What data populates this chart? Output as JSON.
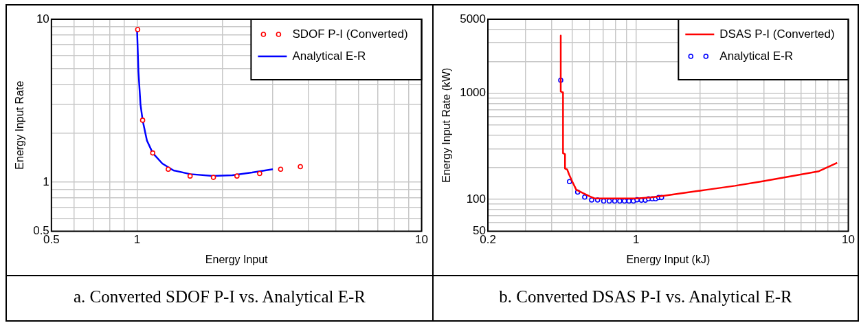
{
  "chart_data": [
    {
      "type": "line",
      "xlabel": "Energy Input",
      "ylabel": "Energy Input Rate",
      "annotations": [
        "a. Converted SDOF P-I vs. Analytical E-R"
      ],
      "log": "xy",
      "xlim": [
        0.5,
        10
      ],
      "ylim": [
        0.5,
        10
      ],
      "xticks": [
        0.5,
        {
          "value": 0.6,
          "label": null
        },
        {
          "value": 0.7,
          "label": null
        },
        {
          "value": 0.8,
          "label": null
        },
        {
          "value": 0.9,
          "label": null
        },
        1,
        {
          "value": 2,
          "label": null
        },
        {
          "value": 3,
          "label": null
        },
        {
          "value": 4,
          "label": null
        },
        {
          "value": 5,
          "label": null
        },
        {
          "value": 6,
          "label": null
        },
        {
          "value": 7,
          "label": null
        },
        {
          "value": 8,
          "label": null
        },
        {
          "value": 9,
          "label": null
        },
        10
      ],
      "yticks": [
        0.5,
        {
          "value": 0.6,
          "label": null
        },
        {
          "value": 0.7,
          "label": null
        },
        {
          "value": 0.8,
          "label": null
        },
        {
          "value": 0.9,
          "label": null
        },
        1,
        {
          "value": 2,
          "label": null
        },
        {
          "value": 3,
          "label": null
        },
        {
          "value": 4,
          "label": null
        },
        {
          "value": 5,
          "label": null
        },
        {
          "value": 6,
          "label": null
        },
        {
          "value": 7,
          "label": null
        },
        {
          "value": 8,
          "label": null
        },
        {
          "value": 9,
          "label": null
        },
        10
      ],
      "grid": true,
      "legend": "top right",
      "series": [
        {
          "name": "SDOF P-I (Converted)",
          "type": "scatter",
          "marker": "circle",
          "color": "#ff0000",
          "x": [
            1.005,
            1.046,
            1.135,
            1.287,
            1.536,
            1.855,
            2.244,
            2.697,
            3.196,
            3.749
          ],
          "values": [
            8.65,
            2.4,
            1.51,
            1.2,
            1.09,
            1.07,
            1.09,
            1.13,
            1.2,
            1.245
          ]
        },
        {
          "name": "Analytical E-R",
          "type": "line",
          "color": "#0000ff",
          "x": [
            1.0,
            1.011,
            1.028,
            1.046,
            1.083,
            1.135,
            1.227,
            1.343,
            1.538,
            1.845,
            2.163,
            2.535,
            3.0
          ],
          "values": [
            8.58,
            4.79,
            3.0,
            2.4,
            1.8,
            1.51,
            1.3,
            1.18,
            1.12,
            1.093,
            1.103,
            1.145,
            1.2
          ]
        }
      ]
    },
    {
      "type": "line",
      "xlabel": "Energy Input (kJ)",
      "ylabel": "Energy Input Rate (kW)",
      "annotations": [
        "b. Converted DSAS P-I vs. Analytical E-R"
      ],
      "log": "xy",
      "xlim": [
        0.2,
        10
      ],
      "ylim": [
        50,
        5000
      ],
      "xticks": [
        0.2,
        {
          "value": 0.3,
          "label": null
        },
        {
          "value": 0.4,
          "label": null
        },
        {
          "value": 0.5,
          "label": null
        },
        {
          "value": 0.6,
          "label": null
        },
        {
          "value": 0.7,
          "label": null
        },
        {
          "value": 0.8,
          "label": null
        },
        {
          "value": 0.9,
          "label": null
        },
        1,
        {
          "value": 2,
          "label": null
        },
        {
          "value": 3,
          "label": null
        },
        {
          "value": 4,
          "label": null
        },
        {
          "value": 5,
          "label": null
        },
        {
          "value": 6,
          "label": null
        },
        {
          "value": 7,
          "label": null
        },
        {
          "value": 8,
          "label": null
        },
        {
          "value": 9,
          "label": null
        },
        10
      ],
      "yticks": [
        50,
        {
          "value": 60,
          "label": null
        },
        {
          "value": 70,
          "label": null
        },
        {
          "value": 80,
          "label": null
        },
        {
          "value": 90,
          "label": null
        },
        100,
        {
          "value": 200,
          "label": null
        },
        {
          "value": 300,
          "label": null
        },
        {
          "value": 400,
          "label": null
        },
        {
          "value": 500,
          "label": null
        },
        {
          "value": 600,
          "label": null
        },
        {
          "value": 700,
          "label": null
        },
        {
          "value": 800,
          "label": null
        },
        {
          "value": 900,
          "label": null
        },
        1000,
        {
          "value": 2000,
          "label": null
        },
        {
          "value": 3000,
          "label": null
        },
        {
          "value": 4000,
          "label": null
        },
        5000
      ],
      "grid": true,
      "legend": "top right",
      "series": [
        {
          "name": "DSAS P-I (Converted)",
          "type": "line",
          "color": "#ff0000",
          "x": [
            0.441,
            0.441,
            0.452,
            0.452,
            0.462,
            0.462,
            0.473,
            0.483,
            0.499,
            0.522,
            0.563,
            0.608,
            0.636,
            0.862,
            1.004,
            1.17,
            1.36,
            1.59,
            2.15,
            2.92,
            3.95,
            5.36,
            7.26,
            8.86
          ],
          "values": [
            3510,
            1040,
            1018,
            272,
            266,
            195,
            191,
            171,
            148,
            123,
            114,
            106,
            102,
            102,
            102,
            104,
            108,
            113,
            123,
            134,
            148,
            165,
            184,
            221
          ]
        },
        {
          "name": "Analytical E-R",
          "type": "scatter",
          "marker": "circle",
          "color": "#0000ff",
          "x": [
            0.441,
            0.485,
            0.53,
            0.572,
            0.617,
            0.658,
            0.703,
            0.747,
            0.792,
            0.837,
            0.881,
            0.925,
            0.971,
            1.01,
            1.058,
            1.104,
            1.144,
            1.19,
            1.235,
            1.277,
            1.317
          ],
          "values": [
            1328,
            147,
            117,
            105,
            98.5,
            98.5,
            96.3,
            96.3,
            96.3,
            96.3,
            96.3,
            96.3,
            96.3,
            99,
            98,
            98,
            101,
            101,
            101,
            104,
            104
          ]
        }
      ]
    }
  ]
}
